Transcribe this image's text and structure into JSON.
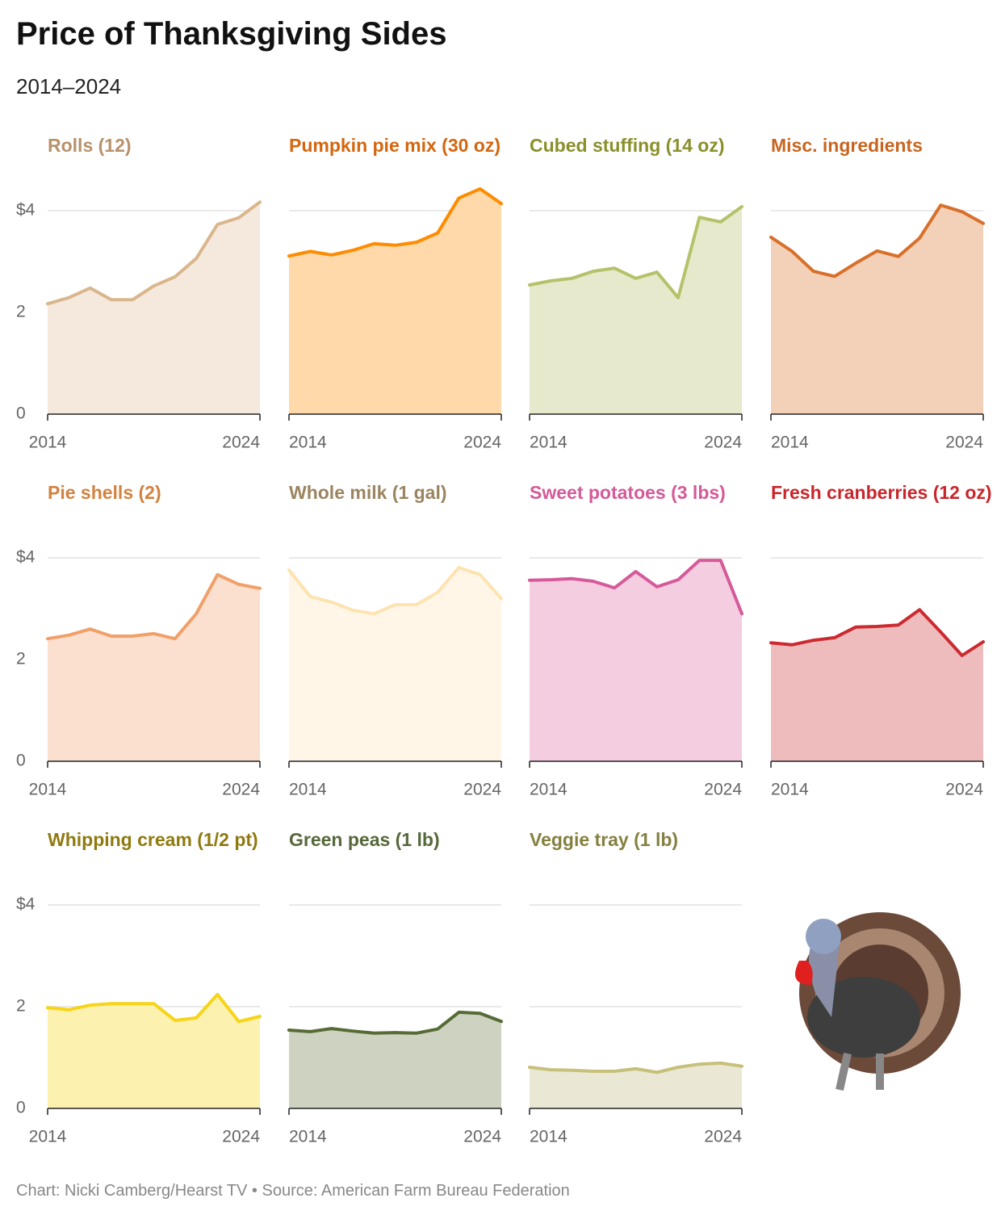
{
  "title": "Price of Thanksgiving Sides",
  "subtitle": "2014–2024",
  "source": "Chart: Nicki Camberg/Hearst TV • Source: American Farm Bureau Federation",
  "axis": {
    "ylim": [
      0,
      4.5
    ],
    "yticks": [
      0,
      2,
      {
        "value": 4,
        "label": "$4"
      }
    ],
    "xlim": [
      2014,
      2024
    ],
    "xticks": [
      2014,
      2024
    ]
  },
  "chart_data": [
    {
      "type": "area",
      "title": "Rolls (12)",
      "title_color": "#b8916a",
      "color": "#d9b68c",
      "fill": "#f5e9dd",
      "x": [
        2014,
        2015,
        2016,
        2017,
        2018,
        2019,
        2020,
        2021,
        2022,
        2023,
        2024
      ],
      "values": [
        2.17,
        2.29,
        2.48,
        2.25,
        2.25,
        2.52,
        2.7,
        3.06,
        3.73,
        3.86,
        4.17
      ]
    },
    {
      "type": "area",
      "title": "Pumpkin pie mix (30 oz)",
      "title_color": "#d4660e",
      "color": "#ff8c00",
      "fill": "#ffd9aa",
      "x": [
        2014,
        2015,
        2016,
        2017,
        2018,
        2019,
        2020,
        2021,
        2022,
        2023,
        2024
      ],
      "values": [
        3.11,
        3.2,
        3.13,
        3.22,
        3.35,
        3.32,
        3.38,
        3.56,
        4.25,
        4.43,
        4.14
      ]
    },
    {
      "type": "area",
      "title": "Cubed stuffing (14 oz)",
      "title_color": "#8a8f2a",
      "color": "#b5c26a",
      "fill": "#e6e9cb",
      "x": [
        2014,
        2015,
        2016,
        2017,
        2018,
        2019,
        2020,
        2021,
        2022,
        2023,
        2024
      ],
      "values": [
        2.54,
        2.62,
        2.67,
        2.81,
        2.87,
        2.67,
        2.79,
        2.29,
        3.87,
        3.78,
        4.08
      ]
    },
    {
      "type": "area",
      "title": "Misc. ingredients",
      "title_color": "#c9651f",
      "color": "#d8702a",
      "fill": "#f3d0b8",
      "x": [
        2014,
        2015,
        2016,
        2017,
        2018,
        2019,
        2020,
        2021,
        2022,
        2023,
        2024
      ],
      "values": [
        3.48,
        3.2,
        2.81,
        2.71,
        2.97,
        3.21,
        3.1,
        3.46,
        4.11,
        3.98,
        3.75
      ]
    },
    {
      "type": "area",
      "title": "Pie shells (2)",
      "title_color": "#d3823f",
      "color": "#f0a068",
      "fill": "#fbe0d0",
      "x": [
        2014,
        2015,
        2016,
        2017,
        2018,
        2019,
        2020,
        2021,
        2022,
        2023,
        2024
      ],
      "values": [
        2.41,
        2.48,
        2.6,
        2.46,
        2.46,
        2.51,
        2.41,
        2.9,
        3.67,
        3.48,
        3.4
      ]
    },
    {
      "type": "area",
      "title": "Whole milk (1 gal)",
      "title_color": "#9b8560",
      "color": "#fde3b0",
      "fill": "#fff6e8",
      "x": [
        2014,
        2015,
        2016,
        2017,
        2018,
        2019,
        2020,
        2021,
        2022,
        2023,
        2024
      ],
      "values": [
        3.76,
        3.24,
        3.13,
        2.97,
        2.9,
        3.08,
        3.08,
        3.32,
        3.81,
        3.67,
        3.2
      ]
    },
    {
      "type": "area",
      "title": "Sweet potatoes (3 lbs)",
      "title_color": "#d45a98",
      "color": "#d65a9a",
      "fill": "#f4cde0",
      "x": [
        2014,
        2015,
        2016,
        2017,
        2018,
        2019,
        2020,
        2021,
        2022,
        2023,
        2024
      ],
      "values": [
        3.56,
        3.57,
        3.59,
        3.54,
        3.41,
        3.73,
        3.43,
        3.57,
        3.95,
        3.95,
        2.9
      ]
    },
    {
      "type": "area",
      "title": "Fresh cranberries (12 oz)",
      "title_color": "#c8262c",
      "color": "#cc2a30",
      "fill": "#eebcbc",
      "x": [
        2014,
        2015,
        2016,
        2017,
        2018,
        2019,
        2020,
        2021,
        2022,
        2023,
        2024
      ],
      "values": [
        2.33,
        2.29,
        2.38,
        2.43,
        2.64,
        2.65,
        2.68,
        2.98,
        2.54,
        2.08,
        2.35
      ]
    },
    {
      "type": "area",
      "title": "Whipping cream (1/2 pt)",
      "title_color": "#8f7a10",
      "color": "#f8d418",
      "fill": "#fdf1b0",
      "x": [
        2014,
        2015,
        2016,
        2017,
        2018,
        2019,
        2020,
        2021,
        2022,
        2023,
        2024
      ],
      "values": [
        1.98,
        1.94,
        2.03,
        2.06,
        2.06,
        2.06,
        1.73,
        1.78,
        2.24,
        1.71,
        1.81
      ]
    },
    {
      "type": "area",
      "title": "Green peas (1 lb)",
      "title_color": "#55683a",
      "color": "#566b35",
      "fill": "#cdd3c0",
      "x": [
        2014,
        2015,
        2016,
        2017,
        2018,
        2019,
        2020,
        2021,
        2022,
        2023,
        2024
      ],
      "values": [
        1.54,
        1.51,
        1.57,
        1.52,
        1.48,
        1.49,
        1.48,
        1.56,
        1.89,
        1.87,
        1.71
      ]
    },
    {
      "type": "area",
      "title": "Veggie tray (1 lb)",
      "title_color": "#858040",
      "color": "#c6c07a",
      "fill": "#eae8d4",
      "x": [
        2014,
        2015,
        2016,
        2017,
        2018,
        2019,
        2020,
        2021,
        2022,
        2023,
        2024
      ],
      "values": [
        0.81,
        0.76,
        0.75,
        0.73,
        0.73,
        0.78,
        0.71,
        0.81,
        0.87,
        0.89,
        0.83
      ]
    }
  ]
}
